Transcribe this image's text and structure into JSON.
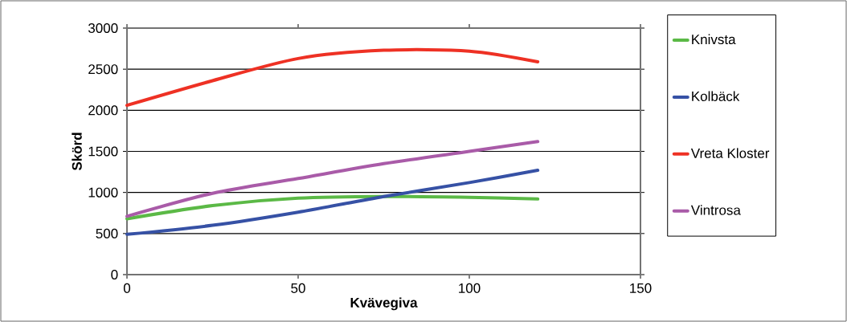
{
  "chart_data": {
    "type": "line",
    "xlabel": "Kvävegiva",
    "ylabel": "Skörd",
    "x": [
      0,
      25,
      50,
      75,
      100,
      120
    ],
    "series": [
      {
        "name": "Knivsta",
        "color": "#5bb946",
        "values": [
          680,
          840,
          930,
          950,
          940,
          920
        ]
      },
      {
        "name": "Kolbäck",
        "color": "#3651a5",
        "values": [
          490,
          600,
          760,
          950,
          1120,
          1270
        ]
      },
      {
        "name": "Vreta Kloster",
        "color": "#ee3124",
        "values": [
          2060,
          2360,
          2630,
          2730,
          2720,
          2590
        ]
      },
      {
        "name": "Vintrosa",
        "color": "#a95ba8",
        "values": [
          710,
          990,
          1170,
          1350,
          1500,
          1620
        ]
      }
    ],
    "xlim": [
      0,
      150
    ],
    "xticks": [
      0,
      50,
      100,
      150
    ],
    "ylim": [
      0,
      3000
    ],
    "yticks": [
      0,
      500,
      1000,
      1500,
      2000,
      2500,
      3000
    ],
    "grid": "y",
    "legend": "right",
    "marker": "none",
    "line_style": "solid"
  }
}
